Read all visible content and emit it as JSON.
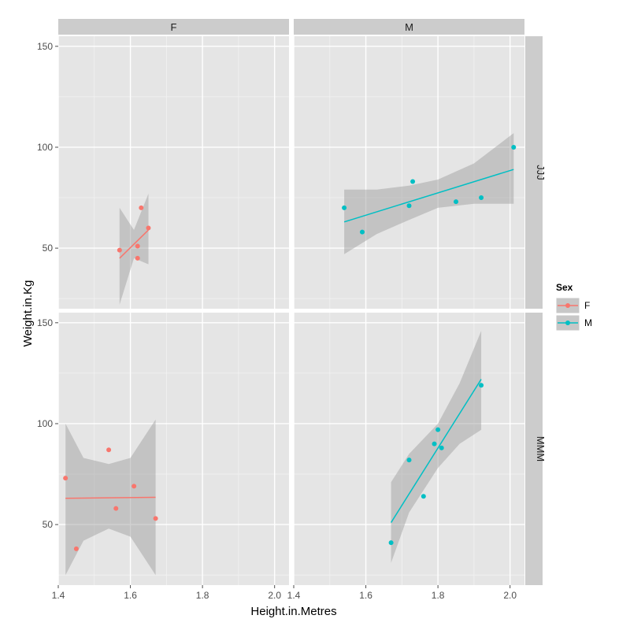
{
  "chart_data": {
    "type": "scatter",
    "facet_columns": [
      "F",
      "M"
    ],
    "facet_rows": [
      "JJJ",
      "MMM"
    ],
    "xlabel": "Height.in.Metres",
    "ylabel": "Weight.in.Kg",
    "xlim": [
      1.4,
      2.04
    ],
    "ylim": [
      20,
      155
    ],
    "x_ticks": [
      1.4,
      1.6,
      1.8,
      2.0
    ],
    "x_tick_labels": [
      "1.4",
      "1.6",
      "1.8",
      "2.0"
    ],
    "y_ticks": [
      50,
      100,
      150
    ],
    "y_tick_labels": [
      "50",
      "100",
      "150"
    ],
    "grid": true,
    "legend": {
      "title": "Sex",
      "placement": "right",
      "entries": [
        {
          "label": "F",
          "color": "#F8766D"
        },
        {
          "label": "M",
          "color": "#00BFC4"
        }
      ]
    },
    "panels": [
      {
        "row": "JJJ",
        "col": "F",
        "color": "#F8766D",
        "points": [
          [
            1.57,
            49
          ],
          [
            1.62,
            51
          ],
          [
            1.62,
            45
          ],
          [
            1.63,
            70
          ],
          [
            1.65,
            60
          ]
        ],
        "fit": {
          "x": [
            1.57,
            1.65
          ],
          "y": [
            45,
            59
          ]
        },
        "band": {
          "x": [
            1.57,
            1.61,
            1.65
          ],
          "upper": [
            70,
            59,
            77
          ],
          "lower": [
            22,
            45,
            42
          ]
        }
      },
      {
        "row": "JJJ",
        "col": "M",
        "color": "#00BFC4",
        "points": [
          [
            1.54,
            70
          ],
          [
            1.59,
            58
          ],
          [
            1.72,
            71
          ],
          [
            1.73,
            83
          ],
          [
            1.85,
            73
          ],
          [
            1.92,
            75
          ],
          [
            2.01,
            100
          ]
        ],
        "fit": {
          "x": [
            1.54,
            2.01
          ],
          "y": [
            63,
            89
          ]
        },
        "band": {
          "x": [
            1.54,
            1.63,
            1.72,
            1.8,
            1.9,
            2.01
          ],
          "upper": [
            79,
            79,
            81,
            84,
            92,
            107
          ],
          "lower": [
            47,
            57,
            64,
            70,
            72,
            72
          ]
        }
      },
      {
        "row": "MMM",
        "col": "F",
        "color": "#F8766D",
        "points": [
          [
            1.42,
            73
          ],
          [
            1.45,
            38
          ],
          [
            1.54,
            87
          ],
          [
            1.56,
            58
          ],
          [
            1.61,
            69
          ],
          [
            1.67,
            53
          ]
        ],
        "fit": {
          "x": [
            1.42,
            1.67
          ],
          "y": [
            63,
            63.5
          ]
        },
        "band": {
          "x": [
            1.42,
            1.47,
            1.54,
            1.6,
            1.67
          ],
          "upper": [
            100,
            83,
            80,
            83,
            102
          ],
          "lower": [
            25,
            42,
            48,
            44,
            25
          ]
        }
      },
      {
        "row": "MMM",
        "col": "M",
        "color": "#00BFC4",
        "points": [
          [
            1.67,
            41
          ],
          [
            1.72,
            82
          ],
          [
            1.76,
            64
          ],
          [
            1.79,
            90
          ],
          [
            1.8,
            97
          ],
          [
            1.81,
            88
          ],
          [
            1.92,
            119
          ]
        ],
        "fit": {
          "x": [
            1.67,
            1.92
          ],
          "y": [
            51,
            122
          ]
        },
        "band": {
          "x": [
            1.67,
            1.72,
            1.8,
            1.86,
            1.92
          ],
          "upper": [
            71,
            85,
            100,
            120,
            146
          ],
          "lower": [
            31,
            56,
            78,
            90,
            97
          ]
        }
      }
    ]
  }
}
